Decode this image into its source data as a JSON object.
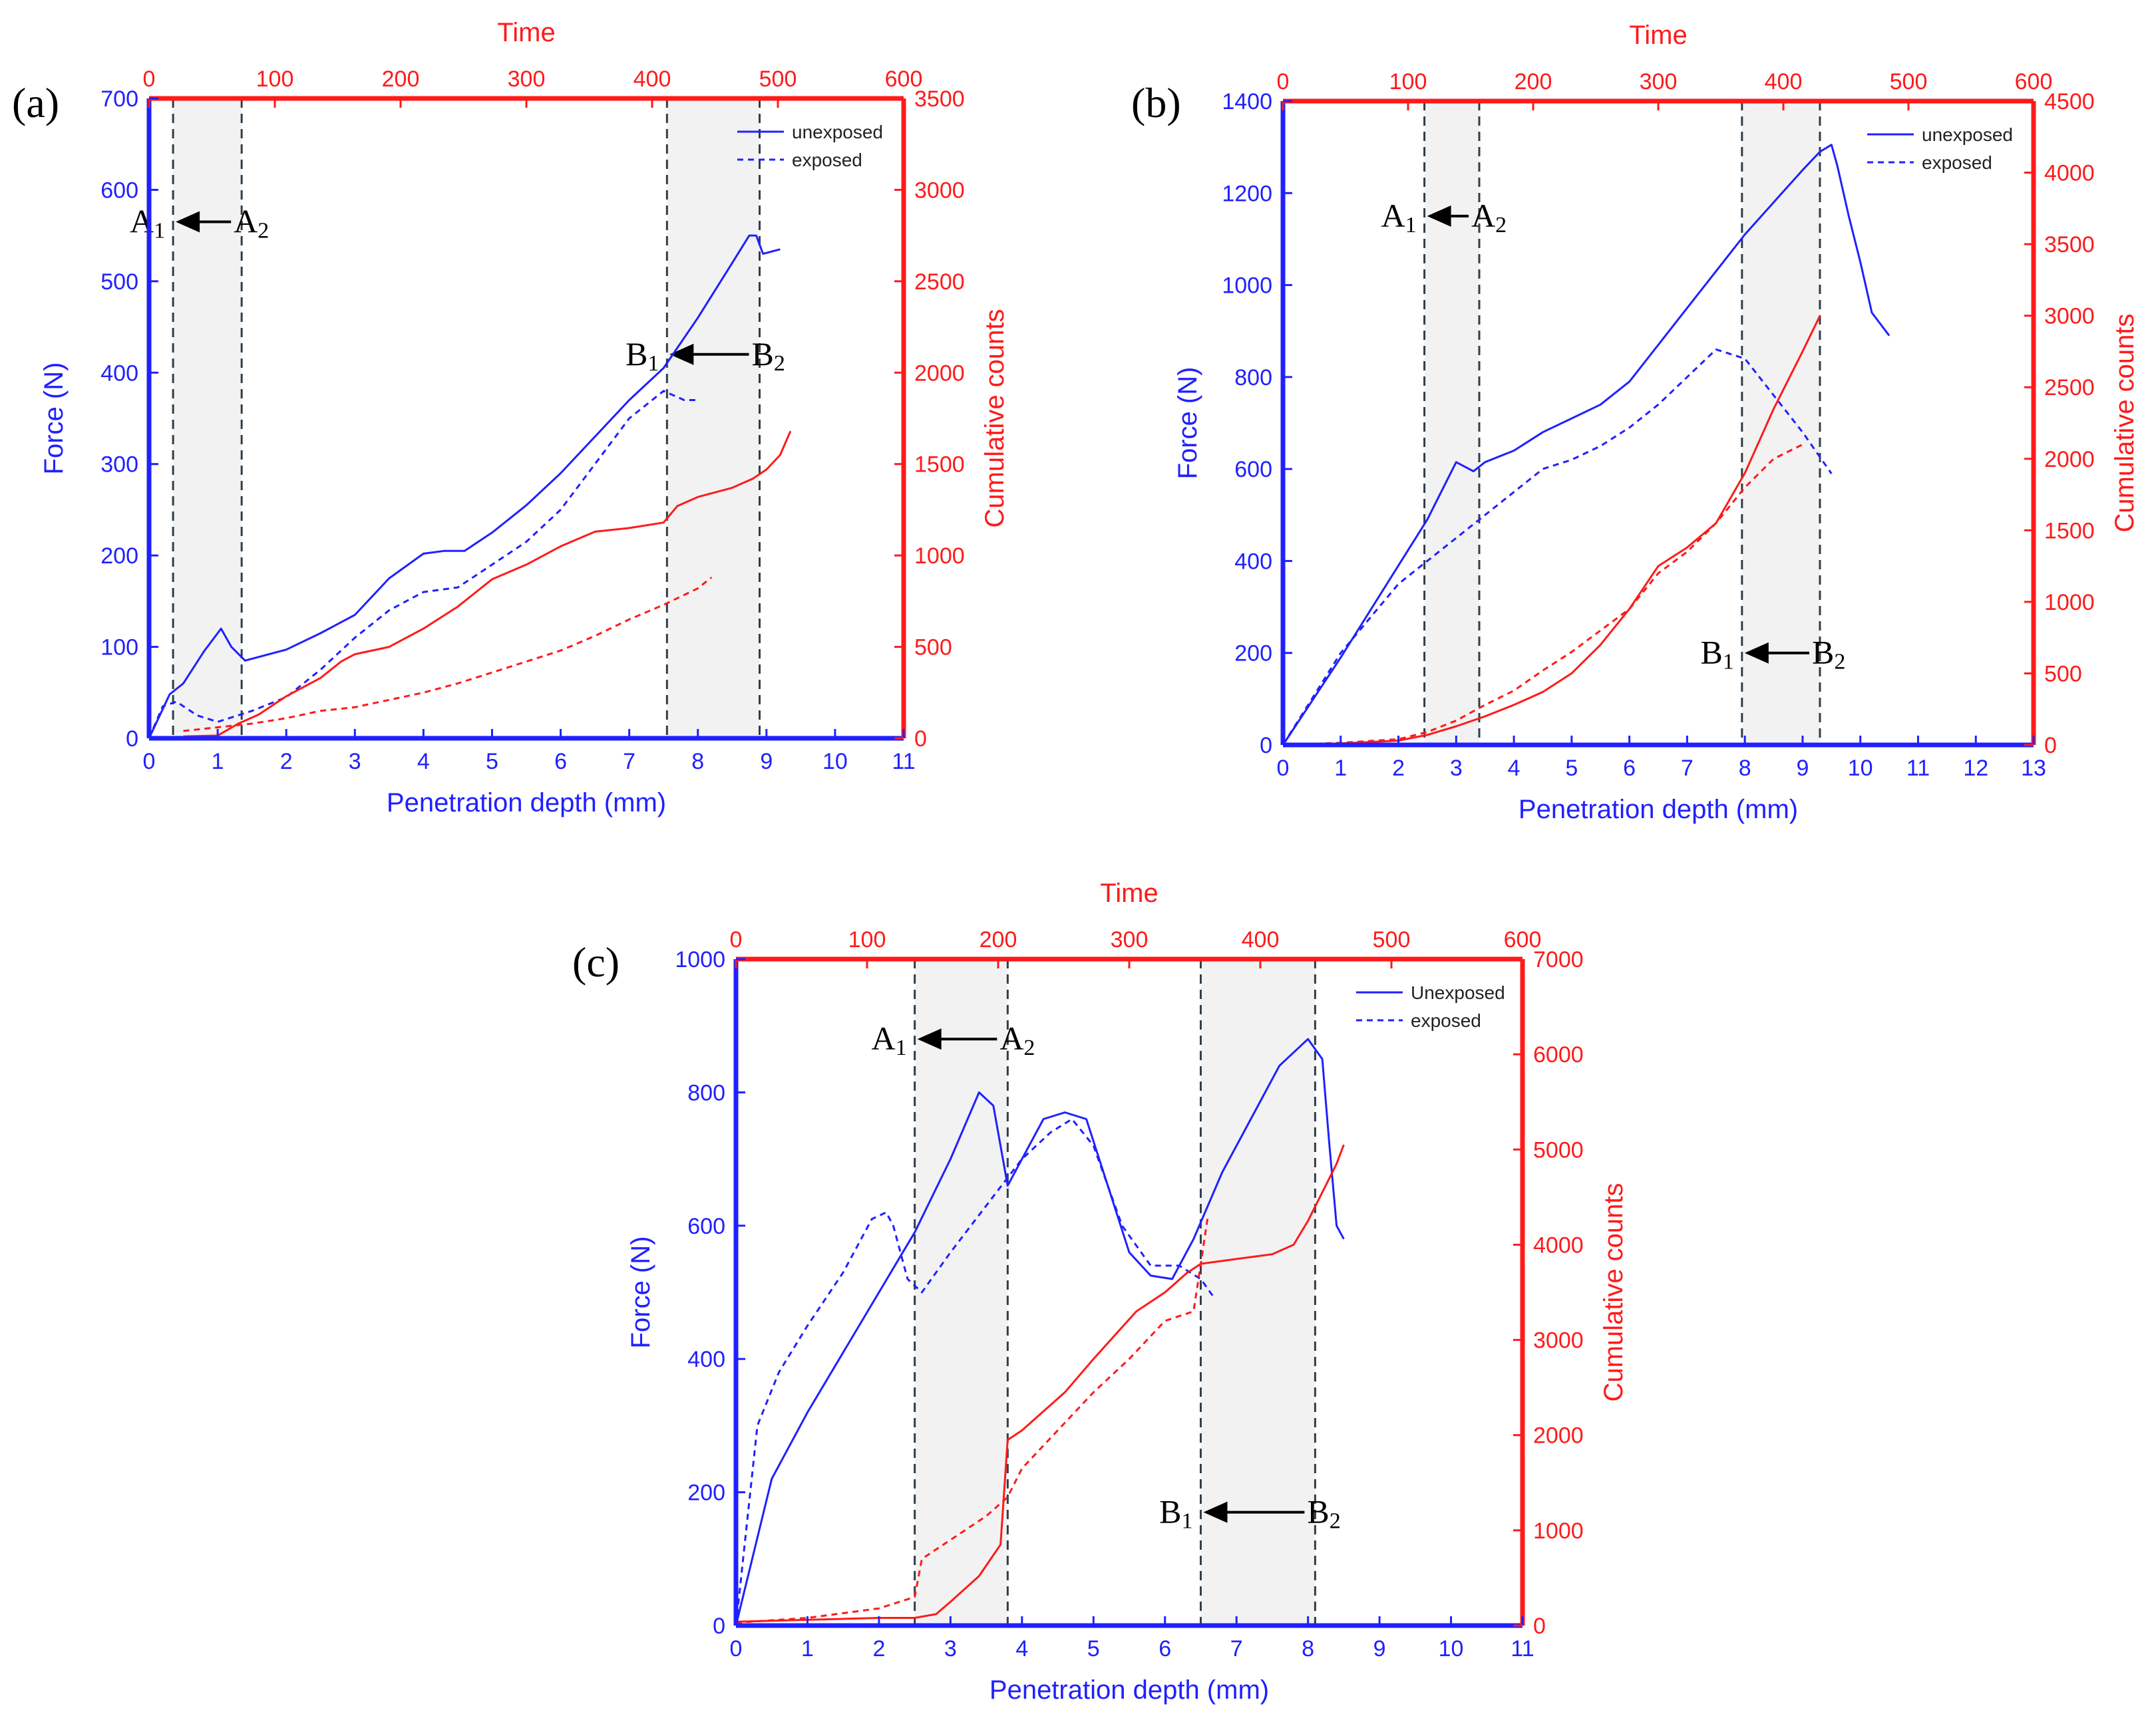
{
  "colors": {
    "force": "#2020ff",
    "counts": "#ff1a1a",
    "shade": "#d6d6d6",
    "marker": "#2f3e4a",
    "arrow": "#000000"
  },
  "chart_data": [
    {
      "type": "line",
      "panel_label": "(a)",
      "xlabel": "Penetration depth (mm)",
      "ylabel": "Force (N)",
      "y2label": "Cumulative counts",
      "x2label": "Time",
      "xlim": [
        0,
        11
      ],
      "xticks": [
        "0",
        "1",
        "2",
        "3",
        "4",
        "5",
        "6",
        "7",
        "8",
        "9",
        "10",
        "11"
      ],
      "ylim": [
        0,
        700
      ],
      "yticks": [
        "0",
        "100",
        "200",
        "300",
        "400",
        "500",
        "600",
        "700"
      ],
      "y2lim": [
        0,
        3500
      ],
      "y2ticks": [
        "0",
        "500",
        "1000",
        "1500",
        "2000",
        "2500",
        "3000",
        "3500"
      ],
      "x2lim": [
        0,
        600
      ],
      "x2ticks": [
        "0",
        "100",
        "200",
        "300",
        "400",
        "500",
        "600"
      ],
      "legend": {
        "position": "top-right",
        "entries": [
          "unexposed",
          "exposed"
        ]
      },
      "regions": [
        {
          "x0": 0.35,
          "x1": 1.35,
          "label_left": "A",
          "sub_left": "1",
          "label_right": "A",
          "sub_right": "2",
          "label_y": 565
        },
        {
          "x0": 7.55,
          "x1": 8.9,
          "label_left": "B",
          "sub_left": "1",
          "label_right": "B",
          "sub_right": "2",
          "label_y": 420
        }
      ],
      "series": [
        {
          "name": "unexposed",
          "axis": "force",
          "style": "solid",
          "x": [
            0,
            0.3,
            0.5,
            0.8,
            1.05,
            1.2,
            1.4,
            2.0,
            2.5,
            3.0,
            3.5,
            4.0,
            4.3,
            4.6,
            5.0,
            5.5,
            6.0,
            6.5,
            7.0,
            7.5,
            8.0,
            8.5,
            8.75,
            8.85,
            8.95,
            9.2
          ],
          "y": [
            0,
            48,
            60,
            95,
            120,
            100,
            85,
            97,
            115,
            135,
            175,
            202,
            205,
            205,
            225,
            255,
            290,
            330,
            370,
            405,
            460,
            520,
            550,
            550,
            530,
            535
          ]
        },
        {
          "name": "exposed",
          "axis": "force",
          "style": "dashed",
          "x": [
            0,
            0.2,
            0.4,
            0.7,
            1.0,
            1.5,
            2.0,
            2.5,
            3.0,
            3.5,
            4.0,
            4.5,
            5.0,
            5.5,
            6.0,
            6.5,
            7.0,
            7.5,
            7.8,
            8.0
          ],
          "y": [
            0,
            35,
            40,
            25,
            18,
            30,
            45,
            75,
            110,
            140,
            160,
            165,
            190,
            215,
            250,
            300,
            350,
            380,
            370,
            370
          ]
        },
        {
          "name": "unexposed",
          "axis": "counts",
          "style": "solid",
          "x": [
            0.5,
            1.0,
            1.3,
            1.6,
            2.0,
            2.5,
            2.8,
            3.0,
            3.5,
            4.0,
            4.5,
            5.0,
            5.5,
            6.0,
            6.5,
            7.0,
            7.5,
            7.7,
            8.0,
            8.5,
            8.8,
            9.0,
            9.2,
            9.35
          ],
          "y": [
            10,
            15,
            80,
            130,
            230,
            330,
            420,
            460,
            500,
            600,
            720,
            870,
            950,
            1050,
            1130,
            1150,
            1180,
            1270,
            1320,
            1370,
            1420,
            1470,
            1550,
            1680
          ]
        },
        {
          "name": "exposed",
          "axis": "counts",
          "style": "dashed",
          "x": [
            0.5,
            1.0,
            1.5,
            2.0,
            2.5,
            3.0,
            3.5,
            4.0,
            4.5,
            5.0,
            5.5,
            6.0,
            6.5,
            7.0,
            7.5,
            8.0,
            8.2
          ],
          "y": [
            40,
            60,
            80,
            110,
            150,
            170,
            210,
            250,
            300,
            360,
            420,
            480,
            560,
            650,
            730,
            820,
            880
          ]
        }
      ]
    },
    {
      "type": "line",
      "panel_label": "(b)",
      "xlabel": "Penetration depth (mm)",
      "ylabel": "Force (N)",
      "y2label": "Cumulative counts",
      "x2label": "Time",
      "xlim": [
        0,
        13
      ],
      "xticks": [
        "0",
        "1",
        "2",
        "3",
        "4",
        "5",
        "6",
        "7",
        "8",
        "9",
        "10",
        "11",
        "12",
        "13"
      ],
      "ylim": [
        0,
        1400
      ],
      "yticks": [
        "0",
        "200",
        "400",
        "600",
        "800",
        "1000",
        "1200",
        "1400"
      ],
      "y2lim": [
        0,
        4500
      ],
      "y2ticks": [
        "0",
        "500",
        "1000",
        "1500",
        "2000",
        "2500",
        "3000",
        "3500",
        "4000",
        "4500"
      ],
      "x2lim": [
        0,
        600
      ],
      "x2ticks": [
        "0",
        "100",
        "200",
        "300",
        "400",
        "500",
        "600"
      ],
      "legend": {
        "position": "top-right",
        "entries": [
          "unexposed",
          "exposed"
        ]
      },
      "regions": [
        {
          "x0": 2.45,
          "x1": 3.4,
          "label_left": "A",
          "sub_left": "1",
          "label_right": "A",
          "sub_right": "2",
          "label_y": 1150
        },
        {
          "x0": 7.95,
          "x1": 9.3,
          "label_left": "B",
          "sub_left": "1",
          "label_right": "B",
          "sub_right": "2",
          "label_y": 200
        }
      ],
      "series": [
        {
          "name": "unexposed",
          "axis": "force",
          "style": "solid",
          "x": [
            0,
            1,
            2,
            2.5,
            3.0,
            3.3,
            3.5,
            4.0,
            4.5,
            5.0,
            5.5,
            6.0,
            6.5,
            7.0,
            7.5,
            8.0,
            8.5,
            9.0,
            9.3,
            9.5,
            9.6,
            9.8,
            10.0,
            10.2,
            10.5
          ],
          "y": [
            0,
            190,
            390,
            490,
            615,
            595,
            615,
            640,
            680,
            710,
            740,
            790,
            870,
            950,
            1030,
            1110,
            1180,
            1250,
            1290,
            1305,
            1260,
            1150,
            1050,
            940,
            890
          ]
        },
        {
          "name": "exposed",
          "axis": "force",
          "style": "dashed",
          "x": [
            0,
            1,
            2,
            2.5,
            3.0,
            3.5,
            4.0,
            4.5,
            5.0,
            5.5,
            6.0,
            6.5,
            7.0,
            7.5,
            8.0,
            8.5,
            9.0,
            9.5
          ],
          "y": [
            0,
            200,
            350,
            400,
            450,
            500,
            550,
            600,
            620,
            650,
            690,
            740,
            800,
            860,
            840,
            760,
            680,
            590
          ]
        },
        {
          "name": "unexposed",
          "axis": "counts",
          "style": "solid",
          "x": [
            0,
            1,
            2,
            2.5,
            3.0,
            3.5,
            4.0,
            4.5,
            5.0,
            5.5,
            6.0,
            6.5,
            7.0,
            7.5,
            8.0,
            8.5,
            9.0,
            9.3
          ],
          "y": [
            0,
            10,
            30,
            70,
            130,
            200,
            280,
            370,
            500,
            700,
            950,
            1250,
            1380,
            1550,
            1900,
            2350,
            2750,
            3000
          ]
        },
        {
          "name": "exposed",
          "axis": "counts",
          "style": "dashed",
          "x": [
            0,
            1,
            2,
            2.5,
            3.0,
            3.5,
            4.0,
            4.5,
            5.0,
            5.5,
            6.0,
            6.5,
            7.0,
            7.5,
            8.0,
            8.5,
            9.0
          ],
          "y": [
            0,
            15,
            40,
            90,
            170,
            280,
            380,
            520,
            650,
            800,
            950,
            1200,
            1350,
            1550,
            1800,
            2000,
            2100
          ]
        }
      ]
    },
    {
      "type": "line",
      "panel_label": "(c)",
      "xlabel": "Penetration depth (mm)",
      "ylabel": "Force (N)",
      "y2label": "Cumulative counts",
      "x2label": "Time",
      "xlim": [
        0,
        11
      ],
      "xticks": [
        "0",
        "1",
        "2",
        "3",
        "4",
        "5",
        "6",
        "7",
        "8",
        "9",
        "10",
        "11"
      ],
      "ylim": [
        0,
        1000
      ],
      "yticks": [
        "0",
        "200",
        "400",
        "600",
        "800",
        "1000"
      ],
      "y2lim": [
        0,
        7000
      ],
      "y2ticks": [
        "0",
        "1000",
        "2000",
        "3000",
        "4000",
        "5000",
        "6000",
        "7000"
      ],
      "x2lim": [
        0,
        600
      ],
      "x2ticks": [
        "0",
        "100",
        "200",
        "300",
        "400",
        "500",
        "600"
      ],
      "legend": {
        "position": "top-right",
        "entries": [
          "Unexposed",
          "exposed"
        ]
      },
      "regions": [
        {
          "x0": 2.5,
          "x1": 3.8,
          "label_left": "A",
          "sub_left": "1",
          "label_right": "A",
          "sub_right": "2",
          "label_y": 880
        },
        {
          "x0": 6.5,
          "x1": 8.1,
          "label_left": "B",
          "sub_left": "1",
          "label_right": "B",
          "sub_right": "2",
          "label_y": 170
        }
      ],
      "series": [
        {
          "name": "Unexposed",
          "axis": "force",
          "style": "solid",
          "x": [
            0,
            0.5,
            1,
            1.5,
            2,
            2.5,
            3.0,
            3.4,
            3.6,
            3.8,
            4.0,
            4.3,
            4.6,
            4.9,
            5.2,
            5.5,
            5.8,
            6.1,
            6.4,
            6.8,
            7.2,
            7.6,
            8.0,
            8.2,
            8.3,
            8.4,
            8.5
          ],
          "y": [
            0,
            220,
            320,
            410,
            500,
            590,
            700,
            800,
            780,
            660,
            700,
            760,
            770,
            760,
            660,
            560,
            525,
            520,
            580,
            680,
            760,
            840,
            880,
            850,
            720,
            600,
            580
          ]
        },
        {
          "name": "exposed",
          "axis": "force",
          "style": "dashed",
          "x": [
            0,
            0.3,
            0.6,
            1.0,
            1.5,
            1.9,
            2.1,
            2.2,
            2.4,
            2.6,
            3.0,
            3.5,
            4.0,
            4.4,
            4.7,
            5.0,
            5.4,
            5.8,
            6.2,
            6.5,
            6.7
          ],
          "y": [
            0,
            300,
            380,
            450,
            530,
            610,
            620,
            600,
            520,
            500,
            560,
            630,
            700,
            740,
            760,
            720,
            600,
            540,
            540,
            520,
            490
          ]
        },
        {
          "name": "Unexposed",
          "axis": "counts",
          "style": "solid",
          "x": [
            0,
            1,
            2,
            2.5,
            2.8,
            3.0,
            3.4,
            3.7,
            3.8,
            4.0,
            4.3,
            4.6,
            5.0,
            5.3,
            5.6,
            6.0,
            6.3,
            6.5,
            7.0,
            7.5,
            7.8,
            8.0,
            8.2,
            8.4,
            8.5
          ],
          "y": [
            40,
            60,
            80,
            80,
            120,
            250,
            520,
            850,
            1950,
            2050,
            2250,
            2450,
            2800,
            3050,
            3300,
            3500,
            3700,
            3800,
            3850,
            3900,
            4000,
            4250,
            4550,
            4850,
            5050
          ]
        },
        {
          "name": "exposed",
          "axis": "counts",
          "style": "dashed",
          "x": [
            0,
            1,
            2,
            2.5,
            2.6,
            3.0,
            3.5,
            3.8,
            4.0,
            4.5,
            5.0,
            5.5,
            6.0,
            6.4,
            6.5,
            6.6
          ],
          "y": [
            30,
            80,
            180,
            300,
            700,
            900,
            1150,
            1350,
            1650,
            2050,
            2450,
            2800,
            3200,
            3300,
            3800,
            4300
          ]
        }
      ]
    }
  ]
}
